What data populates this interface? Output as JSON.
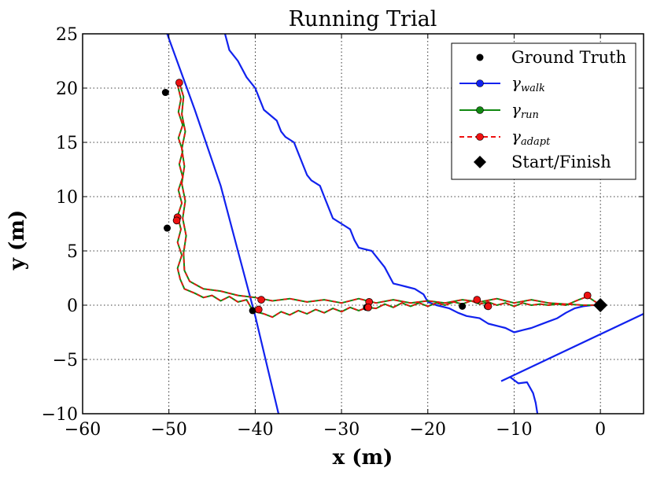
{
  "chart_data": {
    "type": "line",
    "title": "Running Trial",
    "xlabel": "x (m)",
    "ylabel": "y (m)",
    "xlim": [
      -60,
      5
    ],
    "ylim": [
      -10,
      25
    ],
    "grid": true,
    "x_ticks": [
      -60,
      -50,
      -40,
      -30,
      -20,
      -10,
      0
    ],
    "x_tick_labels": [
      "−60",
      "−50",
      "−40",
      "−30",
      "−20",
      "−10",
      "0"
    ],
    "y_ticks": [
      -10,
      -5,
      0,
      5,
      10,
      15,
      20,
      25
    ],
    "y_tick_labels": [
      "−10",
      "−5",
      "0",
      "5",
      "10",
      "15",
      "20",
      "25"
    ],
    "legend_position": "top-right",
    "legend": [
      {
        "key": "ground_truth",
        "label": "Ground Truth",
        "color": "#000000",
        "marker": "circle"
      },
      {
        "key": "walk",
        "symbol": "γ",
        "subscript": "walk",
        "color": "#1122ee",
        "marker": "line-circle"
      },
      {
        "key": "run",
        "symbol": "γ",
        "subscript": "run",
        "color": "#118811",
        "marker": "line-circle"
      },
      {
        "key": "adapt",
        "symbol": "γ",
        "subscript": "adapt",
        "color": "#ee1111",
        "marker": "dashed-circle"
      },
      {
        "key": "start_finish",
        "label": "Start/Finish",
        "color": "#000000",
        "marker": "diamond"
      }
    ],
    "series": [
      {
        "name": "Ground Truth",
        "style": "points",
        "color": "#000000",
        "points": [
          [
            -50.4,
            19.6
          ],
          [
            -50.2,
            7.1
          ],
          [
            -40.3,
            -0.5
          ],
          [
            -27.1,
            -0.2
          ],
          [
            -16.0,
            -0.1
          ],
          [
            -13.1,
            -0.1
          ]
        ]
      },
      {
        "name": "walk",
        "style": "line",
        "color": "#1122ee",
        "segments": [
          [
            [
              -50.2,
              25
            ],
            [
              -47,
              18
            ],
            [
              -44,
              11
            ],
            [
              -42,
              5
            ],
            [
              -40,
              -1
            ],
            [
              -38.5,
              -6
            ],
            [
              -37.3,
              -10
            ]
          ],
          [
            [
              -43.5,
              25
            ],
            [
              -43,
              23.5
            ],
            [
              -42,
              22.5
            ],
            [
              -41,
              21
            ],
            [
              -40,
              20
            ],
            [
              -39.5,
              19
            ],
            [
              -39,
              18
            ],
            [
              -37.5,
              17
            ],
            [
              -37,
              16
            ],
            [
              -36.5,
              15.5
            ],
            [
              -35.5,
              15
            ],
            [
              -35,
              14
            ],
            [
              -34.5,
              13
            ],
            [
              -34,
              12
            ],
            [
              -33.5,
              11.5
            ],
            [
              -32.5,
              11
            ],
            [
              -32,
              10
            ],
            [
              -31.5,
              9
            ],
            [
              -31,
              8
            ],
            [
              -30,
              7.5
            ],
            [
              -29,
              7
            ],
            [
              -28.5,
              6
            ],
            [
              -28,
              5.3
            ],
            [
              -26.5,
              5
            ],
            [
              -26,
              4.5
            ],
            [
              -25,
              3.5
            ],
            [
              -24,
              2
            ],
            [
              -22.5,
              1.7
            ],
            [
              -21.5,
              1.5
            ],
            [
              -20.5,
              1
            ],
            [
              -20,
              0.3
            ],
            [
              -19,
              0
            ],
            [
              -17.5,
              -0.3
            ],
            [
              -16.5,
              -0.7
            ],
            [
              -15.5,
              -1
            ],
            [
              -14,
              -1.2
            ],
            [
              -13,
              -1.7
            ],
            [
              -11,
              -2.1
            ],
            [
              -10,
              -2.5
            ],
            [
              -9,
              -2.3
            ],
            [
              -8,
              -2.1
            ],
            [
              -7,
              -1.8
            ],
            [
              -6,
              -1.5
            ],
            [
              -5,
              -1.2
            ],
            [
              -4,
              -0.7
            ],
            [
              -3,
              -0.3
            ],
            [
              -2,
              -0.1
            ],
            [
              -1,
              0
            ],
            [
              0,
              0
            ]
          ],
          [
            [
              -11.5,
              -7
            ],
            [
              5,
              -0.8
            ]
          ],
          [
            [
              -10.5,
              -6.6
            ],
            [
              -9.5,
              -7.2
            ],
            [
              -8.5,
              -7.1
            ],
            [
              -7.8,
              -8.1
            ],
            [
              -7.5,
              -9
            ],
            [
              -7.3,
              -10
            ]
          ]
        ]
      },
      {
        "name": "run",
        "style": "line",
        "color": "#118811",
        "points": [
          [
            -49,
            20.3
          ],
          [
            -48.6,
            19
          ],
          [
            -48.9,
            17.8
          ],
          [
            -48.4,
            16.6
          ],
          [
            -48.9,
            15.4
          ],
          [
            -48.4,
            14.2
          ],
          [
            -48.8,
            13
          ],
          [
            -48.4,
            11.8
          ],
          [
            -48.9,
            10.6
          ],
          [
            -48.5,
            9.4
          ],
          [
            -49,
            8.2
          ],
          [
            -48.6,
            7
          ],
          [
            -49,
            5.8
          ],
          [
            -48.5,
            4.6
          ],
          [
            -49,
            3.4
          ],
          [
            -48.7,
            2.4
          ],
          [
            -48.2,
            1.5
          ],
          [
            -47,
            1.1
          ],
          [
            -46,
            0.7
          ],
          [
            -45,
            0.9
          ],
          [
            -44,
            0.4
          ],
          [
            -43,
            0.8
          ],
          [
            -42,
            0.3
          ],
          [
            -41,
            0.5
          ],
          [
            -40.5,
            -0.2
          ],
          [
            -40,
            -0.6
          ],
          [
            -39,
            -0.8
          ],
          [
            -38,
            -1.1
          ],
          [
            -37,
            -0.6
          ],
          [
            -36,
            -0.9
          ],
          [
            -35,
            -0.5
          ],
          [
            -34,
            -0.8
          ],
          [
            -33,
            -0.4
          ],
          [
            -32,
            -0.7
          ],
          [
            -31,
            -0.3
          ],
          [
            -30,
            -0.6
          ],
          [
            -29,
            -0.2
          ],
          [
            -28,
            -0.5
          ],
          [
            -27,
            -0.2
          ],
          [
            -26,
            -0.3
          ],
          [
            -25,
            0.1
          ],
          [
            -24,
            -0.2
          ],
          [
            -23,
            0.2
          ],
          [
            -22,
            -0.1
          ],
          [
            -21,
            0.2
          ],
          [
            -20,
            -0.1
          ],
          [
            -19,
            0.2
          ],
          [
            -18,
            0
          ],
          [
            -17,
            0.3
          ],
          [
            -16,
            0.1
          ],
          [
            -15,
            0.4
          ],
          [
            -14,
            0.1
          ],
          [
            -13,
            0.3
          ],
          [
            -12,
            0
          ],
          [
            -11,
            0.2
          ],
          [
            -10,
            -0.1
          ],
          [
            -9,
            0.2
          ],
          [
            -8,
            0
          ],
          [
            -7,
            0.1
          ],
          [
            -6,
            0
          ],
          [
            -5,
            0.1
          ],
          [
            -4,
            0
          ],
          [
            -2.5,
            0.5
          ],
          [
            -1.5,
            0.8
          ],
          [
            0,
            0
          ],
          [
            -2,
            0
          ],
          [
            -4,
            0.1
          ],
          [
            -6,
            0.2
          ],
          [
            -8,
            0.5
          ],
          [
            -10,
            0.2
          ],
          [
            -12,
            0.6
          ],
          [
            -14,
            0.3
          ],
          [
            -16,
            0.5
          ],
          [
            -18,
            0.2
          ],
          [
            -20,
            0.4
          ],
          [
            -22,
            0.2
          ],
          [
            -24,
            0.5
          ],
          [
            -26,
            0.2
          ],
          [
            -28,
            0.6
          ],
          [
            -30,
            0.2
          ],
          [
            -32,
            0.5
          ],
          [
            -34,
            0.3
          ],
          [
            -36,
            0.6
          ],
          [
            -38,
            0.4
          ],
          [
            -40,
            0.7
          ],
          [
            -42,
            0.9
          ],
          [
            -44,
            1.3
          ],
          [
            -46,
            1.5
          ],
          [
            -47.6,
            2.2
          ],
          [
            -48.2,
            3.2
          ],
          [
            -48.3,
            4.8
          ],
          [
            -48,
            6.4
          ],
          [
            -48.4,
            8
          ],
          [
            -48.1,
            9.6
          ],
          [
            -48.5,
            11.2
          ],
          [
            -48.2,
            12.8
          ],
          [
            -48.5,
            14.4
          ],
          [
            -48.1,
            16
          ],
          [
            -48.5,
            17.6
          ],
          [
            -48.3,
            19.2
          ],
          [
            -48.8,
            20.5
          ]
        ]
      },
      {
        "name": "adapt",
        "style": "dashed",
        "color": "#ee1111",
        "points": [
          [
            -49,
            20.3
          ],
          [
            -48.6,
            19
          ],
          [
            -48.9,
            17.8
          ],
          [
            -48.4,
            16.6
          ],
          [
            -48.9,
            15.4
          ],
          [
            -48.4,
            14.2
          ],
          [
            -48.8,
            13
          ],
          [
            -48.4,
            11.8
          ],
          [
            -48.9,
            10.6
          ],
          [
            -48.5,
            9.4
          ],
          [
            -49,
            8.2
          ],
          [
            -48.6,
            7
          ],
          [
            -49,
            5.8
          ],
          [
            -48.5,
            4.6
          ],
          [
            -49,
            3.4
          ],
          [
            -48.7,
            2.4
          ],
          [
            -48.2,
            1.5
          ],
          [
            -47,
            1.1
          ],
          [
            -46,
            0.7
          ],
          [
            -45,
            0.9
          ],
          [
            -44,
            0.4
          ],
          [
            -43,
            0.8
          ],
          [
            -42,
            0.3
          ],
          [
            -41,
            0.5
          ],
          [
            -40.5,
            -0.2
          ],
          [
            -40,
            -0.6
          ],
          [
            -39,
            -0.8
          ],
          [
            -38,
            -1.1
          ],
          [
            -37,
            -0.6
          ],
          [
            -36,
            -0.9
          ],
          [
            -35,
            -0.5
          ],
          [
            -34,
            -0.8
          ],
          [
            -33,
            -0.4
          ],
          [
            -32,
            -0.7
          ],
          [
            -31,
            -0.3
          ],
          [
            -30,
            -0.6
          ],
          [
            -29,
            -0.2
          ],
          [
            -28,
            -0.5
          ],
          [
            -27,
            -0.2
          ],
          [
            -26,
            -0.3
          ],
          [
            -25,
            0.1
          ],
          [
            -24,
            -0.2
          ],
          [
            -23,
            0.2
          ],
          [
            -22,
            -0.1
          ],
          [
            -21,
            0.2
          ],
          [
            -20,
            -0.1
          ],
          [
            -19,
            0.2
          ],
          [
            -18,
            0
          ],
          [
            -17,
            0.3
          ],
          [
            -16,
            0.1
          ],
          [
            -15,
            0.4
          ],
          [
            -14,
            0.1
          ],
          [
            -13,
            0.3
          ],
          [
            -12,
            0
          ],
          [
            -11,
            0.2
          ],
          [
            -10,
            -0.1
          ],
          [
            -9,
            0.2
          ],
          [
            -8,
            0
          ],
          [
            -7,
            0.1
          ],
          [
            -6,
            0
          ],
          [
            -5,
            0.1
          ],
          [
            -4,
            0
          ],
          [
            -2.5,
            0.5
          ],
          [
            -1.5,
            0.8
          ],
          [
            0,
            0
          ],
          [
            -2,
            0
          ],
          [
            -4,
            0.1
          ],
          [
            -6,
            0.2
          ],
          [
            -8,
            0.5
          ],
          [
            -10,
            0.2
          ],
          [
            -12,
            0.6
          ],
          [
            -14,
            0.3
          ],
          [
            -16,
            0.5
          ],
          [
            -18,
            0.2
          ],
          [
            -20,
            0.4
          ],
          [
            -22,
            0.2
          ],
          [
            -24,
            0.5
          ],
          [
            -26,
            0.2
          ],
          [
            -28,
            0.6
          ],
          [
            -30,
            0.2
          ],
          [
            -32,
            0.5
          ],
          [
            -34,
            0.3
          ],
          [
            -36,
            0.6
          ],
          [
            -38,
            0.4
          ],
          [
            -40,
            0.7
          ],
          [
            -42,
            0.9
          ],
          [
            -44,
            1.3
          ],
          [
            -46,
            1.5
          ],
          [
            -47.6,
            2.2
          ],
          [
            -48.2,
            3.2
          ],
          [
            -48.3,
            4.8
          ],
          [
            -48,
            6.4
          ],
          [
            -48.4,
            8
          ],
          [
            -48.1,
            9.6
          ],
          [
            -48.5,
            11.2
          ],
          [
            -48.2,
            12.8
          ],
          [
            -48.5,
            14.4
          ],
          [
            -48.1,
            16
          ],
          [
            -48.5,
            17.6
          ],
          [
            -48.3,
            19.2
          ],
          [
            -48.8,
            20.5
          ]
        ],
        "markers": [
          [
            -48.8,
            20.5
          ],
          [
            -49.0,
            8.1
          ],
          [
            -49.1,
            7.8
          ],
          [
            -39.6,
            -0.4
          ],
          [
            -39.3,
            0.5
          ],
          [
            -26.8,
            0.3
          ],
          [
            -26.9,
            -0.2
          ],
          [
            -14.3,
            0.5
          ],
          [
            -13.0,
            -0.1
          ],
          [
            -1.5,
            0.9
          ]
        ]
      },
      {
        "name": "Start/Finish",
        "style": "marker",
        "color": "#000000",
        "points": [
          [
            0,
            0
          ]
        ]
      }
    ]
  }
}
